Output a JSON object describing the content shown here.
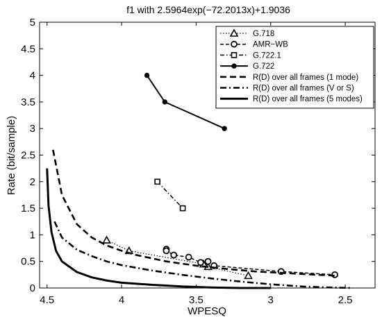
{
  "chart_data": {
    "type": "line",
    "title": "f1 with 2.5964exp(−72.2013x)+1.9036",
    "xlabel": "WPESQ",
    "ylabel": "Rate (bit/sample)",
    "xlim": [
      4.55,
      2.3
    ],
    "ylim": [
      0,
      5
    ],
    "x_reversed": true,
    "grid": false,
    "legend_position": "top-right",
    "xticks": [
      {
        "value": 4.5,
        "label": "4.5"
      },
      {
        "value": 4.0,
        "label": "4"
      },
      {
        "value": 3.5,
        "label": "3.5"
      },
      {
        "value": 3.0,
        "label": "3"
      },
      {
        "value": 2.5,
        "label": "2.5"
      }
    ],
    "yticks": [
      {
        "value": 0,
        "label": "0"
      },
      {
        "value": 0.5,
        "label": "0.5"
      },
      {
        "value": 1,
        "label": "1"
      },
      {
        "value": 1.5,
        "label": "1.5"
      },
      {
        "value": 2,
        "label": "2"
      },
      {
        "value": 2.5,
        "label": "2.5"
      },
      {
        "value": 3,
        "label": "3"
      },
      {
        "value": 3.5,
        "label": "3.5"
      },
      {
        "value": 4,
        "label": "4"
      },
      {
        "value": 4.5,
        "label": "4.5"
      },
      {
        "value": 5,
        "label": "5"
      }
    ],
    "series": [
      {
        "name": "G.718",
        "line": "dotted",
        "marker": "triangle",
        "points": [
          [
            4.1,
            0.9
          ],
          [
            3.95,
            0.7
          ],
          [
            3.45,
            0.45
          ],
          [
            3.42,
            0.4
          ],
          [
            3.15,
            0.23
          ]
        ]
      },
      {
        "name": "AMR−WB",
        "line": "dashed",
        "marker": "circle",
        "points": [
          [
            3.7,
            0.73
          ],
          [
            3.7,
            0.7
          ],
          [
            3.65,
            0.62
          ],
          [
            3.55,
            0.58
          ],
          [
            3.47,
            0.48
          ],
          [
            3.42,
            0.5
          ],
          [
            3.38,
            0.42
          ],
          [
            2.93,
            0.31
          ],
          [
            2.57,
            0.25
          ]
        ]
      },
      {
        "name": "G.722.1",
        "line": "dashdot",
        "marker": "square",
        "points": [
          [
            3.76,
            2.0
          ],
          [
            3.59,
            1.5
          ]
        ]
      },
      {
        "name": "G.722",
        "line": "solid",
        "marker": "dot",
        "points": [
          [
            3.83,
            4.0
          ],
          [
            3.71,
            3.5
          ],
          [
            3.31,
            3.0
          ]
        ]
      },
      {
        "name": "R(D) over all frames (1 mode)",
        "line": "dashed-thick",
        "marker": "none",
        "points": [
          [
            4.46,
            2.6
          ],
          [
            4.4,
            1.75
          ],
          [
            4.3,
            1.2
          ],
          [
            4.2,
            0.95
          ],
          [
            4.1,
            0.8
          ],
          [
            4.0,
            0.7
          ],
          [
            3.9,
            0.62
          ],
          [
            3.8,
            0.56
          ],
          [
            3.7,
            0.5
          ],
          [
            3.5,
            0.42
          ],
          [
            3.3,
            0.36
          ],
          [
            3.1,
            0.31
          ],
          [
            2.9,
            0.28
          ],
          [
            2.7,
            0.25
          ],
          [
            2.55,
            0.23
          ]
        ]
      },
      {
        "name": "R(D) over all frames (V or S)",
        "line": "dashdot-thick",
        "marker": "none",
        "points": [
          [
            4.45,
            1.25
          ],
          [
            4.4,
            0.95
          ],
          [
            4.3,
            0.72
          ],
          [
            4.2,
            0.6
          ],
          [
            4.1,
            0.5
          ],
          [
            4.0,
            0.43
          ],
          [
            3.8,
            0.33
          ],
          [
            3.6,
            0.25
          ],
          [
            3.4,
            0.18
          ],
          [
            3.2,
            0.12
          ],
          [
            3.0,
            0.07
          ],
          [
            2.8,
            0.03
          ],
          [
            2.6,
            0.01
          ],
          [
            2.45,
            0.0
          ]
        ]
      },
      {
        "name": "R(D) over all frames (5 modes)",
        "line": "solid-thick",
        "marker": "none",
        "points": [
          [
            4.5,
            2.25
          ],
          [
            4.49,
            1.55
          ],
          [
            4.47,
            1.05
          ],
          [
            4.44,
            0.7
          ],
          [
            4.4,
            0.5
          ],
          [
            4.3,
            0.3
          ],
          [
            4.2,
            0.2
          ],
          [
            4.1,
            0.14
          ],
          [
            4.0,
            0.1
          ],
          [
            3.8,
            0.06
          ],
          [
            3.6,
            0.03
          ],
          [
            3.4,
            0.01
          ],
          [
            3.2,
            0.0
          ],
          [
            3.0,
            0.0
          ]
        ]
      }
    ]
  }
}
